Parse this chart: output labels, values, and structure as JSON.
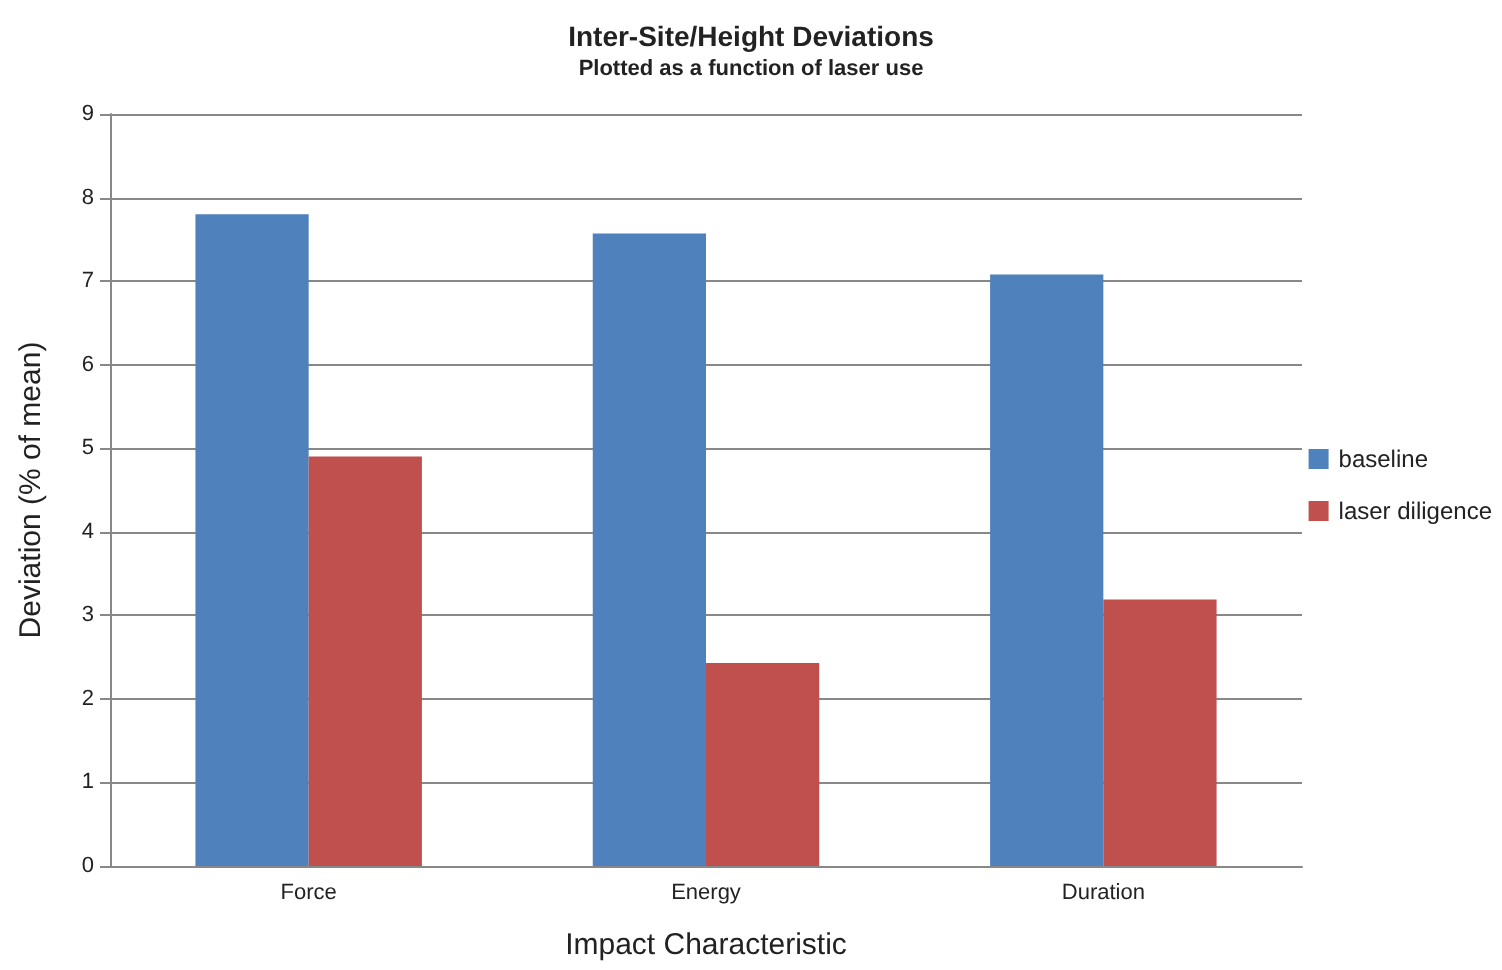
{
  "chart_data": {
    "type": "bar",
    "title": "Inter-Site/Height Deviations",
    "subtitle": "Plotted as a function of laser use",
    "xlabel": "Impact Characteristic",
    "ylabel": "Deviation (% of mean)",
    "categories": [
      "Force",
      "Energy",
      "Duration"
    ],
    "series": [
      {
        "name": "baseline",
        "color": "#4f81bd",
        "values": [
          7.8,
          7.57,
          7.08
        ]
      },
      {
        "name": "laser diligence",
        "color": "#c0504d",
        "values": [
          4.9,
          2.43,
          3.19
        ]
      }
    ],
    "ylim": [
      0,
      9
    ],
    "yticks": [
      0,
      1,
      2,
      3,
      4,
      5,
      6,
      7,
      8,
      9
    ],
    "grid": "y",
    "legend": "right"
  }
}
